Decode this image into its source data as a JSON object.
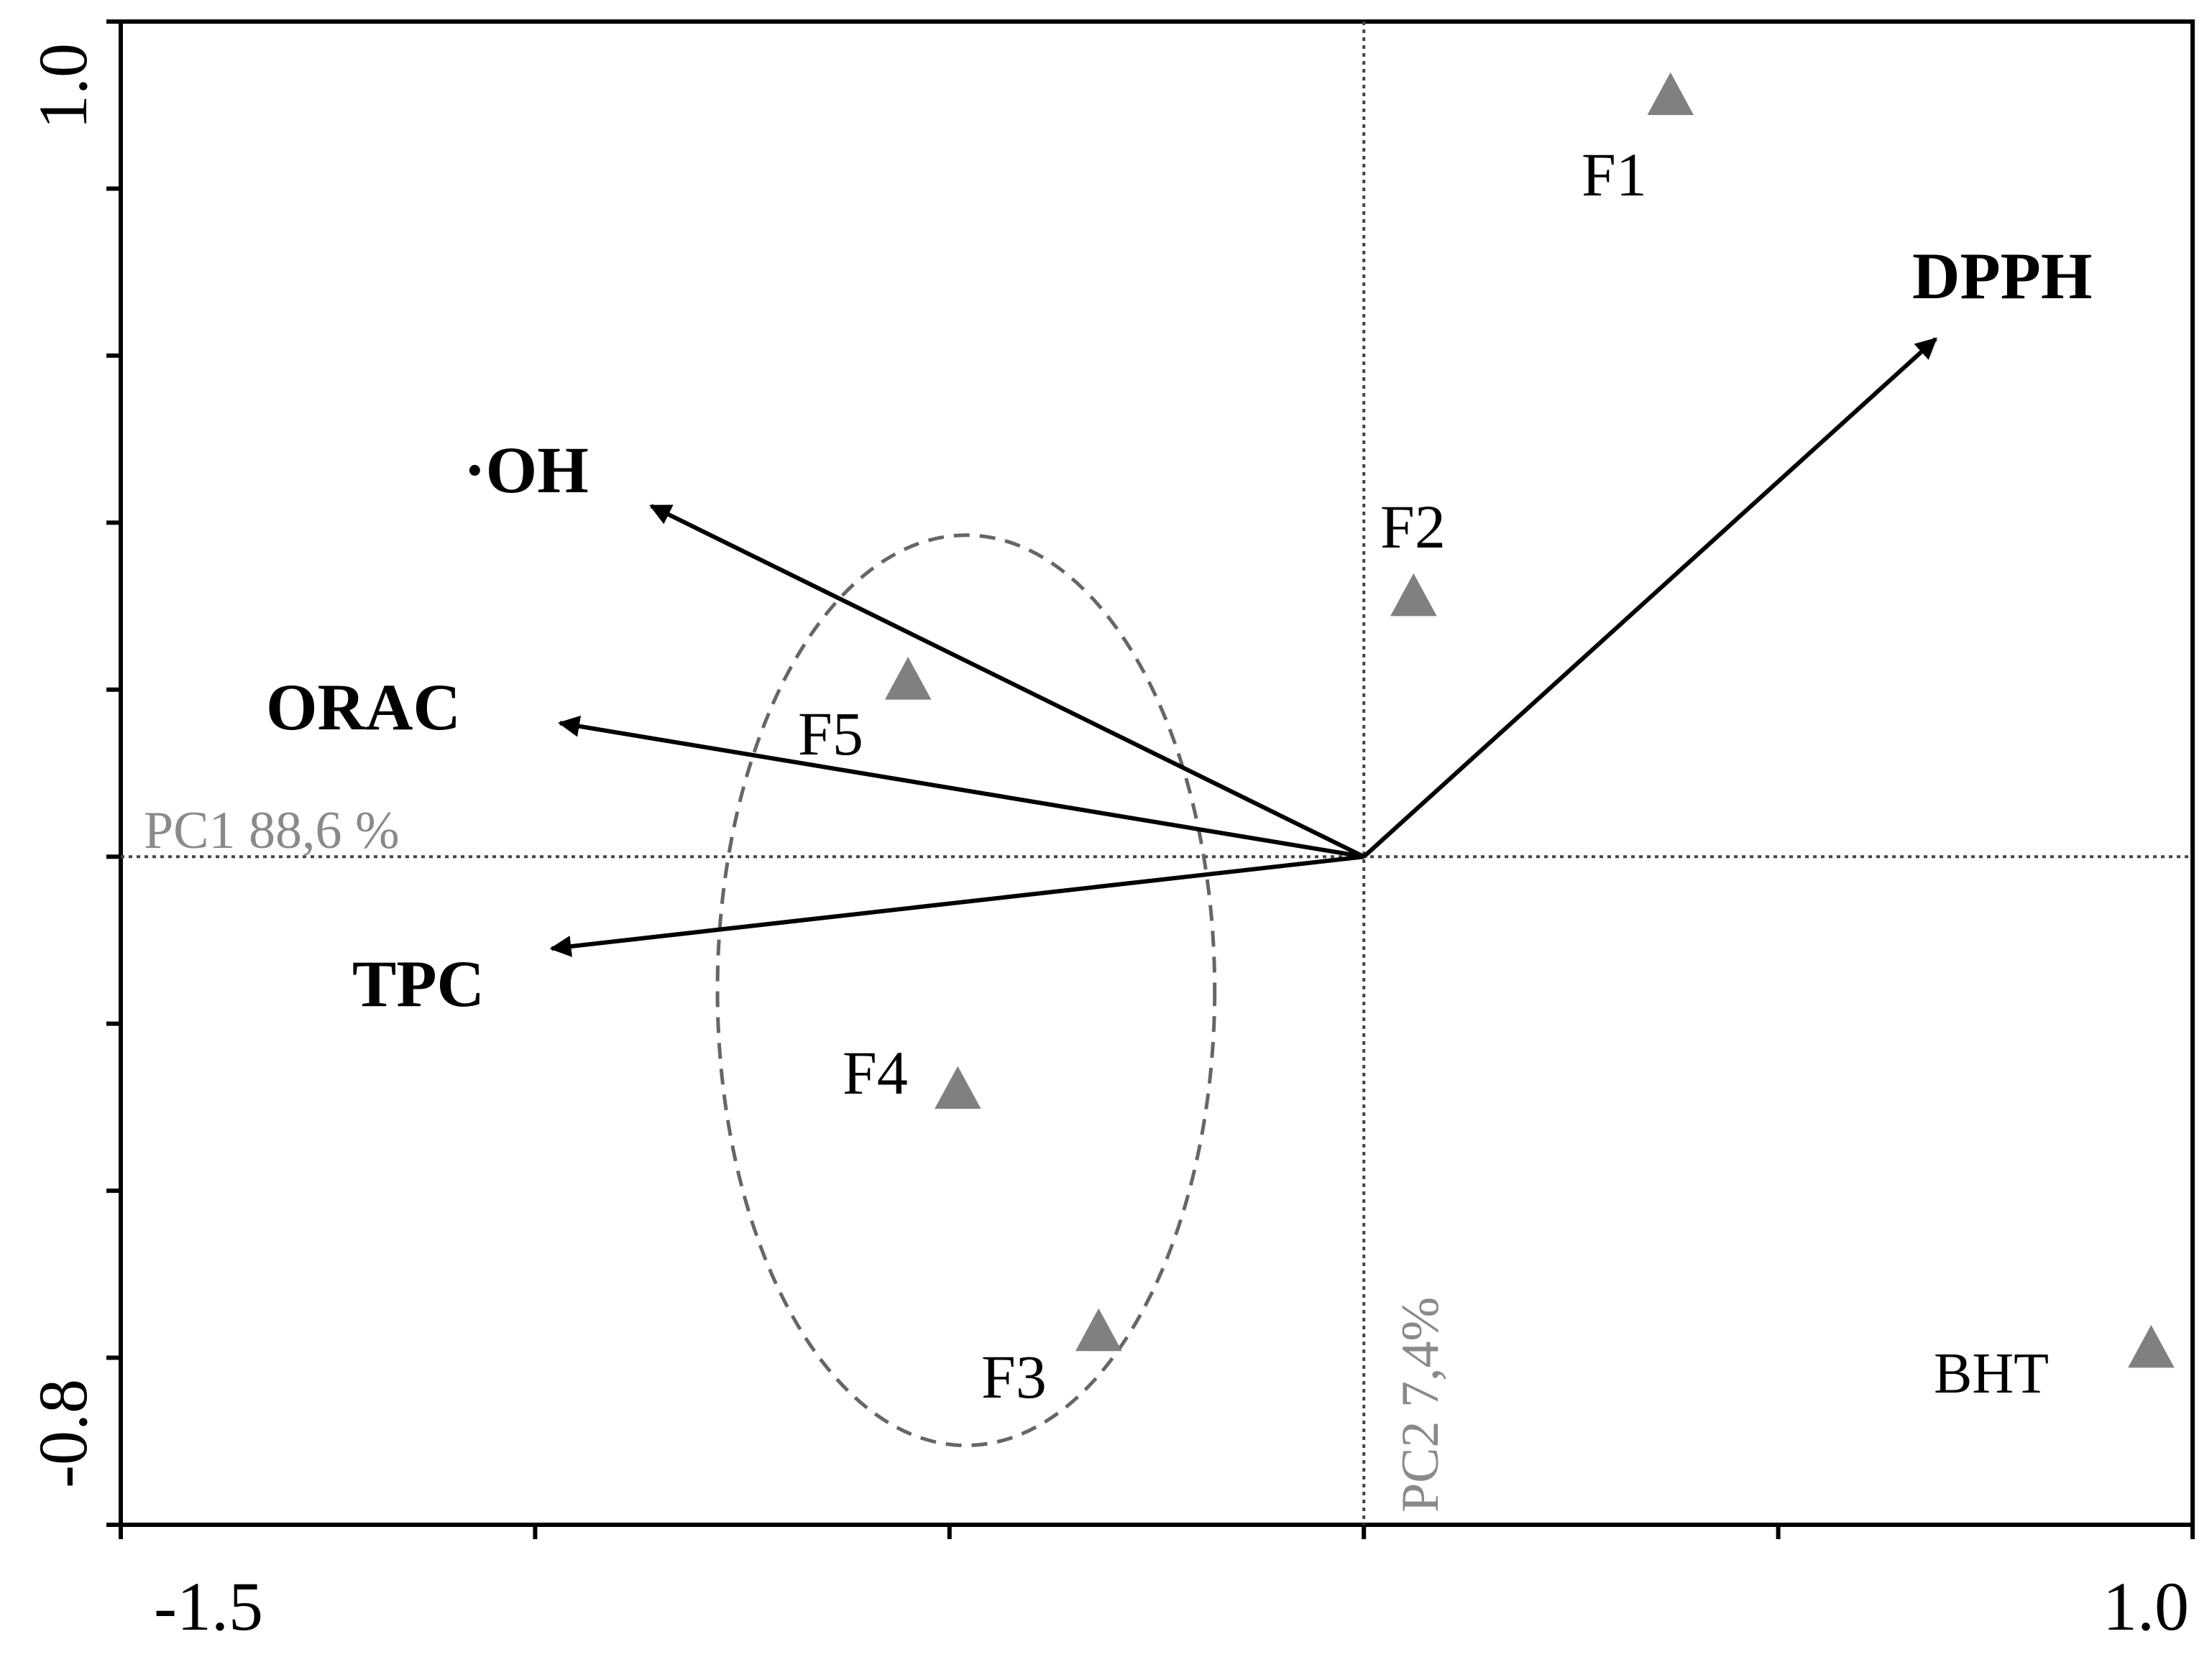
{
  "chart_data": {
    "type": "scatter",
    "subtype": "pca-biplot",
    "x_axis": {
      "label": "PC1 88,6 %",
      "range": [
        -1.5,
        1.0
      ],
      "tick_labels": [
        "-1.5",
        "1.0"
      ]
    },
    "y_axis": {
      "label": "PC2 7,4%",
      "range": [
        -0.8,
        1.0
      ],
      "tick_labels": [
        "-0.8",
        "1.0"
      ]
    },
    "grid": false,
    "origin_lines": true,
    "loadings": [
      {
        "name": "DPPH",
        "x": 0.69,
        "y": 0.62
      },
      {
        "name": "·OH",
        "x": -0.86,
        "y": 0.42
      },
      {
        "name": "ORAC",
        "x": -0.97,
        "y": 0.16
      },
      {
        "name": "TPC",
        "x": -0.98,
        "y": -0.11
      }
    ],
    "scores": [
      {
        "name": "F1",
        "x": 0.37,
        "y": 0.91
      },
      {
        "name": "F2",
        "x": 0.06,
        "y": 0.31
      },
      {
        "name": "F3",
        "x": -0.32,
        "y": -0.57
      },
      {
        "name": "F4",
        "x": -0.49,
        "y": -0.28
      },
      {
        "name": "F5",
        "x": -0.55,
        "y": 0.21
      },
      {
        "name": "BHT",
        "x": 0.95,
        "y": -0.59
      }
    ],
    "cluster_ellipse": {
      "members": [
        "F3",
        "F4",
        "F5"
      ],
      "center": [
        -0.48,
        -0.16
      ],
      "radii": [
        0.3,
        0.545
      ],
      "style": "dashed"
    }
  }
}
